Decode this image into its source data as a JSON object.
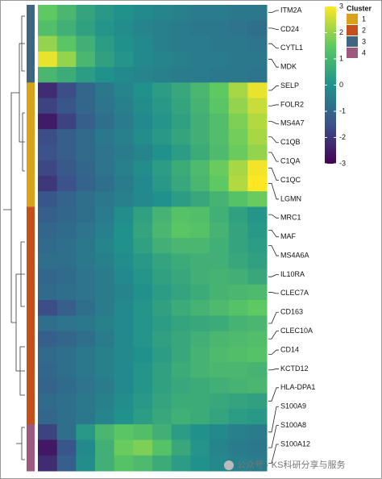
{
  "chart_data": {
    "type": "heatmap",
    "rows": [
      "ITM2A",
      "CD24",
      "CYTL1",
      "MDK",
      null,
      "SELP",
      "FOLR2",
      "MS4A7",
      "C1QB",
      "C1QA",
      "C1QC",
      "LGMN",
      null,
      "MRC1",
      "MAF",
      "MS4A6A",
      null,
      "IL10RA",
      "CLEC7A",
      null,
      "CD163",
      "CLEC10A",
      "CD14",
      "KCTD12",
      null,
      "HLA-DPA1",
      null,
      "S100A9",
      "S100A8",
      "S100A12"
    ],
    "row_cluster": [
      "3",
      "3",
      "3",
      "3",
      "3",
      "1",
      "1",
      "1",
      "1",
      "1",
      "1",
      "1",
      "1",
      "2",
      "2",
      "2",
      "2",
      "2",
      "2",
      "2",
      "2",
      "2",
      "2",
      "2",
      "2",
      "2",
      "2",
      "4",
      "4",
      "4"
    ],
    "z": [
      [
        1.5,
        1.0,
        0.5,
        0.2,
        0,
        -0.2,
        -0.3,
        -0.4,
        -0.5,
        -0.5,
        -0.6,
        -0.6
      ],
      [
        1.2,
        0.8,
        0.4,
        0.1,
        -0.1,
        -0.3,
        -0.4,
        -0.5,
        -0.6,
        -0.6,
        -0.7,
        -0.8
      ],
      [
        2.0,
        1.4,
        0.8,
        0.3,
        0,
        -0.2,
        -0.4,
        -0.5,
        -0.5,
        -0.6,
        -0.6,
        -0.7
      ],
      [
        2.8,
        2.0,
        1.0,
        0.4,
        0.1,
        -0.2,
        -0.3,
        -0.4,
        -0.5,
        -0.5,
        -0.6,
        -0.6
      ],
      [
        1.0,
        0.7,
        0.3,
        0,
        -0.2,
        -0.3,
        -0.4,
        -0.5,
        -0.5,
        -0.6,
        -0.6,
        -0.7
      ],
      [
        -2.2,
        -1.6,
        -1.0,
        -0.6,
        -0.3,
        0,
        0.3,
        0.6,
        1.0,
        1.5,
        2.2,
        2.8
      ],
      [
        -1.8,
        -1.4,
        -1.0,
        -0.7,
        -0.4,
        -0.1,
        0.2,
        0.5,
        0.9,
        1.4,
        2.0,
        2.5
      ],
      [
        -2.5,
        -1.8,
        -1.2,
        -0.8,
        -0.5,
        -0.2,
        0.1,
        0.4,
        0.8,
        1.2,
        1.8,
        2.3
      ],
      [
        -1.6,
        -1.2,
        -0.9,
        -0.6,
        -0.4,
        -0.1,
        0.2,
        0.5,
        0.8,
        1.2,
        1.7,
        2.2
      ],
      [
        -1.5,
        -1.2,
        -0.9,
        -0.7,
        -0.5,
        -0.3,
        0,
        0.3,
        0.7,
        1.1,
        1.6,
        2.0
      ],
      [
        -1.7,
        -1.3,
        -1.0,
        -0.7,
        -0.4,
        -0.1,
        0.3,
        0.7,
        1.1,
        1.6,
        2.2,
        2.9
      ],
      [
        -2.0,
        -1.5,
        -1.1,
        -0.8,
        -0.5,
        -0.2,
        0.2,
        0.6,
        1.0,
        1.5,
        2.3,
        3.0
      ],
      [
        -1.4,
        -1.1,
        -0.8,
        -0.6,
        -0.4,
        -0.2,
        0,
        0.3,
        0.6,
        0.9,
        1.3,
        1.6
      ],
      [
        -1.2,
        -1.0,
        -0.8,
        -0.5,
        -0.1,
        0.4,
        0.9,
        1.3,
        1.2,
        0.8,
        0.4,
        0.1
      ],
      [
        -1.0,
        -0.9,
        -0.7,
        -0.4,
        0,
        0.5,
        1.0,
        1.4,
        1.3,
        0.9,
        0.5,
        0.2
      ],
      [
        -0.9,
        -0.8,
        -0.6,
        -0.3,
        0,
        0.4,
        0.8,
        1.0,
        1.0,
        0.8,
        0.5,
        0.3
      ],
      [
        -0.8,
        -0.8,
        -0.6,
        -0.4,
        -0.1,
        0.2,
        0.5,
        0.7,
        0.8,
        0.8,
        0.6,
        0.4
      ],
      [
        -1.0,
        -0.9,
        -0.7,
        -0.5,
        -0.2,
        0.1,
        0.4,
        0.6,
        0.8,
        0.9,
        0.8,
        0.6
      ],
      [
        -0.9,
        -0.8,
        -0.7,
        -0.5,
        -0.3,
        0,
        0.3,
        0.5,
        0.7,
        0.9,
        1.0,
        1.1
      ],
      [
        -1.6,
        -1.2,
        -0.8,
        -0.5,
        -0.2,
        0.1,
        0.4,
        0.7,
        0.9,
        1.1,
        1.3,
        1.5
      ],
      [
        -0.8,
        -0.7,
        -0.6,
        -0.4,
        -0.2,
        0.1,
        0.3,
        0.5,
        0.6,
        0.7,
        0.9,
        1.0
      ],
      [
        -1.2,
        -1.0,
        -0.8,
        -0.5,
        -0.2,
        0.1,
        0.4,
        0.6,
        0.8,
        1.0,
        1.1,
        1.2
      ],
      [
        -0.9,
        -0.8,
        -0.6,
        -0.4,
        -0.2,
        0,
        0.3,
        0.6,
        0.9,
        1.1,
        1.2,
        1.3
      ],
      [
        -1.0,
        -0.8,
        -0.6,
        -0.4,
        -0.2,
        0.1,
        0.4,
        0.7,
        0.9,
        1.0,
        1.0,
        0.9
      ],
      [
        -1.1,
        -0.9,
        -0.7,
        -0.5,
        -0.2,
        0.1,
        0.4,
        0.6,
        0.7,
        0.8,
        0.9,
        1.0
      ],
      [
        -0.9,
        -0.8,
        -0.6,
        -0.4,
        -0.1,
        0.2,
        0.5,
        0.7,
        0.7,
        0.6,
        0.5,
        0.4
      ],
      [
        -1.0,
        -0.8,
        -0.6,
        -0.3,
        0,
        0.3,
        0.6,
        0.8,
        0.7,
        0.5,
        0.3,
        0.2
      ],
      [
        -1.8,
        -0.8,
        0.2,
        1.0,
        1.4,
        1.2,
        0.8,
        0.3,
        0,
        -0.2,
        -0.4,
        -0.5
      ],
      [
        -2.6,
        -1.4,
        -0.2,
        0.8,
        1.6,
        1.8,
        1.3,
        0.6,
        0.1,
        -0.3,
        -0.5,
        -0.6
      ],
      [
        -2.2,
        -1.2,
        -0.1,
        0.8,
        1.3,
        1.1,
        0.7,
        0.3,
        0,
        -0.2,
        -0.4,
        -0.5
      ]
    ],
    "colorscale": [
      "#440154",
      "#3b528b",
      "#21918c",
      "#5ec962",
      "#fde725"
    ],
    "zlim": [
      -3,
      3
    ],
    "zticks": [
      3,
      2,
      1,
      0,
      -1,
      -2,
      -3
    ],
    "cluster_legend": {
      "title": "Cluster",
      "levels": [
        {
          "label": "1",
          "color": "#d9a21b"
        },
        {
          "label": "2",
          "color": "#c4501d"
        },
        {
          "label": "3",
          "color": "#3e6680"
        },
        {
          "label": "4",
          "color": "#9c5b7e"
        }
      ]
    },
    "watermark": "公众号 · KS科研分享与服务"
  }
}
